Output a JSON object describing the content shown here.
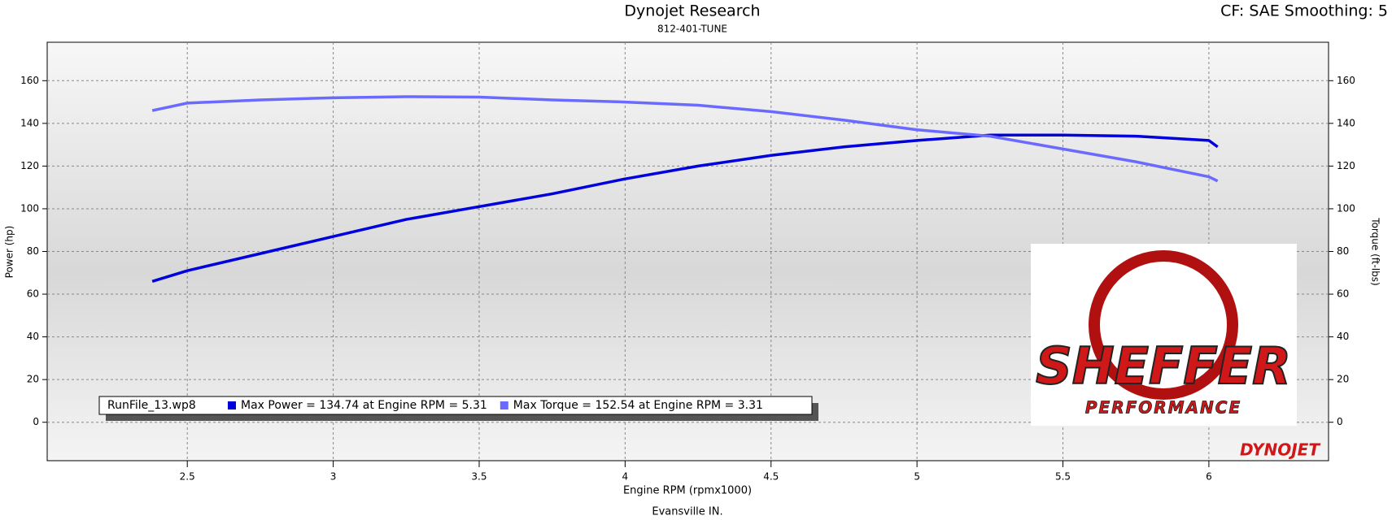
{
  "chart_data": {
    "type": "line",
    "title": "Dynojet Research",
    "subtitle": "812-401-TUNE",
    "corner_note": "CF: SAE Smoothing: 5",
    "x_label": "Engine RPM (rpmx1000)",
    "y_label": "Power (hp)",
    "y2_label": "Torque (ft-lbs)",
    "footer": "Evansville IN.",
    "logo_texts": [
      "SHEFFER",
      "PERFORMANCE"
    ],
    "watermark": "DYNOJET",
    "legend_title": "RunFile_13.wp8",
    "x": [
      2.38,
      2.5,
      2.75,
      3.0,
      3.25,
      3.5,
      3.75,
      4.0,
      4.25,
      4.5,
      4.75,
      5.0,
      5.25,
      5.5,
      5.75,
      6.0,
      6.03
    ],
    "series": [
      {
        "name": "Max Power = 134.74 at Engine RPM = 5.31",
        "color": "#0000dd",
        "values": [
          66,
          71,
          79,
          87,
          95,
          101,
          107,
          114,
          120,
          125,
          129,
          132,
          134.5,
          134.5,
          134,
          132,
          129
        ]
      },
      {
        "name": "Max Torque = 152.54 at Engine RPM = 3.31",
        "color": "#6a6aff",
        "axis": "y2",
        "values": [
          146,
          149.5,
          151,
          152,
          152.5,
          152.3,
          151,
          150,
          148.5,
          145.5,
          141.5,
          137,
          134,
          128,
          122,
          115,
          113
        ]
      }
    ],
    "xlim": [
      2.02,
      6.41
    ],
    "xticks": [
      2.5,
      3.0,
      3.5,
      4.0,
      4.5,
      5.0,
      5.5,
      6.0
    ],
    "ylim": [
      -18,
      178
    ],
    "yticks": [
      0,
      20,
      40,
      60,
      80,
      100,
      120,
      140,
      160
    ],
    "y2lim": [
      -18,
      178
    ],
    "y2ticks": [
      0,
      20,
      40,
      60,
      80,
      100,
      120,
      140,
      160
    ],
    "grid": true
  }
}
